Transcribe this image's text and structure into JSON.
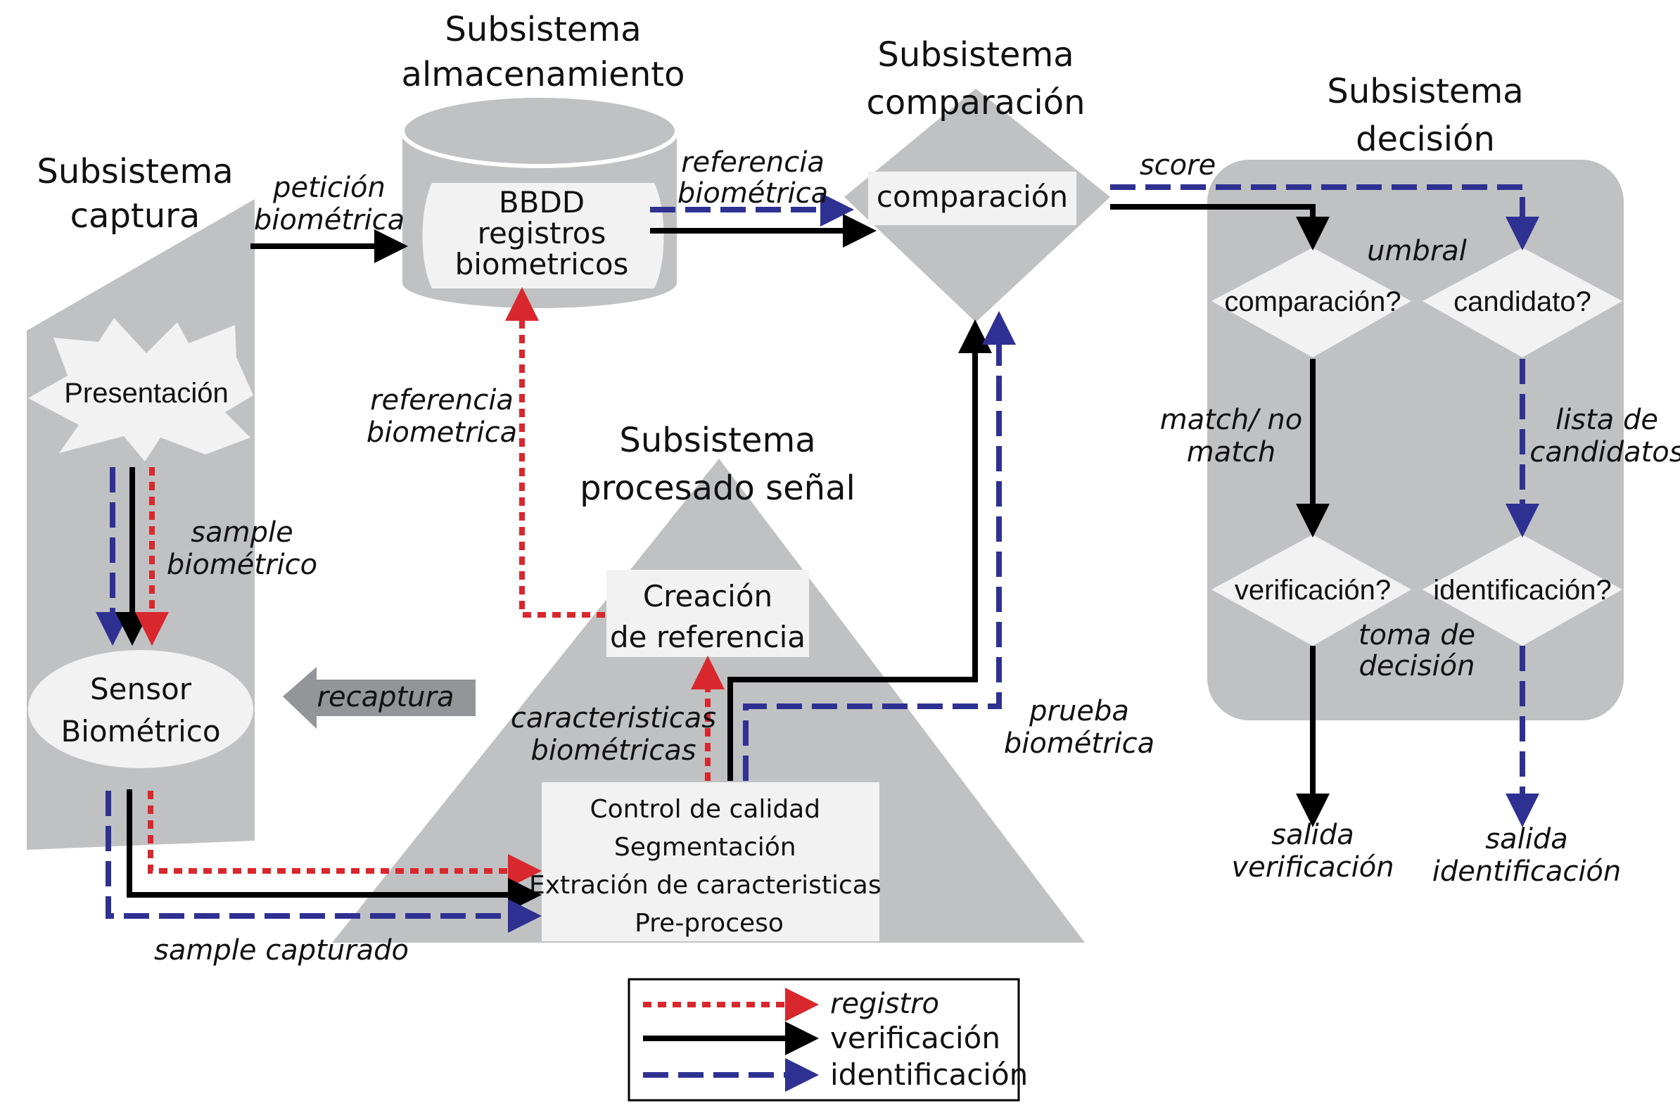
{
  "colors": {
    "registro": "#d9272e",
    "verificacion": "#000000",
    "identificacion": "#2e3192",
    "shape_fill": "#c0c1c3",
    "box_fill": "#f2f2f2"
  },
  "titles": {
    "captura": [
      "Subsistema",
      "captura"
    ],
    "almacenamiento": [
      "Subsistema",
      "almacenamiento"
    ],
    "comparacion": [
      "Subsistema",
      "comparación"
    ],
    "decision": [
      "Subsistema",
      "decisión"
    ],
    "procesado": [
      "Subsistema",
      "procesado señal"
    ]
  },
  "boxes": {
    "bbdd": [
      "BBDD",
      "registros",
      "biometricos"
    ],
    "comparacion": "comparación",
    "presentacion": "Presentación",
    "sensor": [
      "Sensor",
      "Biométrico"
    ],
    "creacion": [
      "Creación",
      "de referencia"
    ],
    "procesos": [
      "Control de calidad",
      "Segmentación",
      "Extración de caracteristicas",
      "Pre-proceso"
    ],
    "decision_comparacion": "comparación?",
    "decision_candidato": "candidato?",
    "decision_verificacion": "verificación?",
    "decision_identificacion": "identificación?"
  },
  "labels": {
    "peticion": [
      "petición",
      "biométrica"
    ],
    "referencia_top": [
      "referencia",
      "biométrica"
    ],
    "score": "score",
    "umbral": "umbral",
    "referencia_left": [
      "referencia",
      "biometrica"
    ],
    "sample_bio": [
      "sample",
      "biométrico"
    ],
    "recaptura": "recaptura",
    "caracteristicas": [
      "caracteristicas",
      "biométricas"
    ],
    "prueba": [
      "prueba",
      "biométrica"
    ],
    "sample_capturado": "sample capturado",
    "match": [
      "match/ no",
      "match"
    ],
    "lista": [
      "lista de",
      "candidatos"
    ],
    "toma": [
      "toma de",
      "decisión"
    ],
    "salida_ver": [
      "salida",
      "verificación"
    ],
    "salida_id": [
      "salida",
      "identificación"
    ]
  },
  "legend": {
    "registro": "registro",
    "verificacion": "verificación",
    "identificacion": "identificación"
  }
}
